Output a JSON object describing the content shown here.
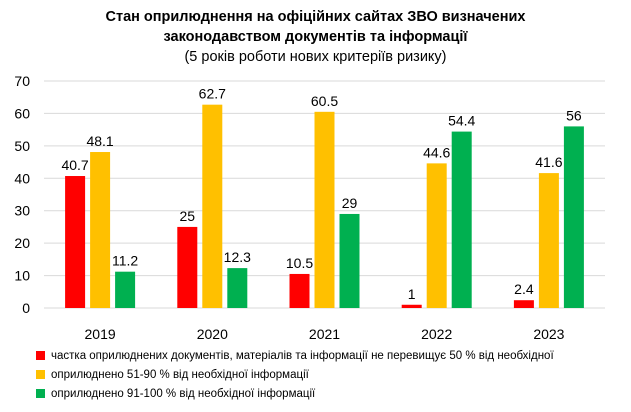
{
  "chart_data": {
    "type": "bar",
    "title_lines": [
      "Стан оприлюднення на офіційних сайтах ЗВО визначених",
      "законодавством документів та інформації",
      "(5 років роботи нових критеріїв ризику)"
    ],
    "xlabel": "",
    "ylabel": "",
    "categories": [
      "2019",
      "2020",
      "2021",
      "2022",
      "2023"
    ],
    "ylim": [
      0,
      70
    ],
    "yticks": [
      0,
      10,
      20,
      30,
      40,
      50,
      60,
      70
    ],
    "grid": true,
    "legend_position": "bottom-left",
    "series": [
      {
        "name": "частка оприлюднених документів, матеріалів та інформації не перевищує 50 % від необхідної",
        "color": "#FF0000",
        "values": [
          40.7,
          25,
          10.5,
          1,
          2.4
        ],
        "labels": [
          "40.7",
          "25",
          "10.5",
          "1",
          "2.4"
        ]
      },
      {
        "name": "оприлюднено 51-90 % від необхідної інформації",
        "color": "#FFC000",
        "values": [
          48.1,
          62.7,
          60.5,
          44.6,
          41.6
        ],
        "labels": [
          "48.1",
          "62.7",
          "60.5",
          "44.6",
          "41.6"
        ]
      },
      {
        "name": "оприлюднено 91-100 % від необхідної інформації",
        "color": "#00B050",
        "values": [
          11.2,
          12.3,
          29,
          54.4,
          56
        ],
        "labels": [
          "11.2",
          "12.3",
          "29",
          "54.4",
          "56"
        ]
      }
    ]
  },
  "colors": {
    "gridline": "#D9D9D9",
    "text": "#000000"
  }
}
